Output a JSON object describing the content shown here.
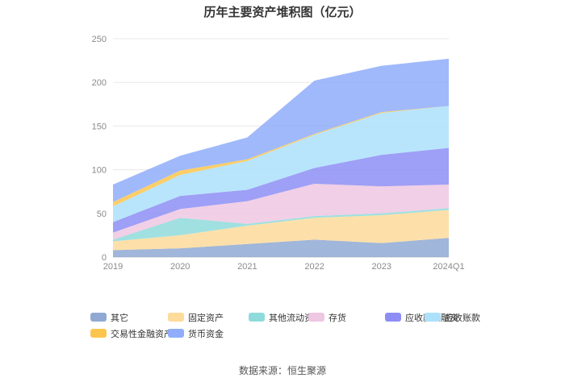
{
  "chart_data": {
    "type": "area",
    "stacked": true,
    "title": "历年主要资产堆积图（亿元）",
    "categories": [
      "2019",
      "2020",
      "2021",
      "2022",
      "2023",
      "2024Q1"
    ],
    "y_ticks": [
      "0",
      "50",
      "100",
      "150",
      "200",
      "250"
    ],
    "ylim": [
      0,
      250
    ],
    "grid": true,
    "legend_position": "bottom",
    "series": [
      {
        "name": "其它",
        "color": "#8fa9d3",
        "values": [
          8,
          10,
          15,
          20,
          16,
          22
        ]
      },
      {
        "name": "固定资产",
        "color": "#fddb9a",
        "values": [
          10,
          15,
          21,
          25,
          32,
          32
        ]
      },
      {
        "name": "其他流动资产",
        "color": "#8fdbdc",
        "values": [
          2,
          20,
          2,
          2,
          2,
          2
        ]
      },
      {
        "name": "存货",
        "color": "#eec7e2",
        "values": [
          8,
          10,
          26,
          37,
          31,
          27
        ]
      },
      {
        "name": "应收款项融资",
        "color": "#8d8ef5",
        "values": [
          12,
          15,
          13,
          18,
          36,
          42
        ]
      },
      {
        "name": "应收账款",
        "color": "#ace1fb",
        "values": [
          18,
          24,
          33,
          38,
          48,
          48
        ]
      },
      {
        "name": "交易性金融资产",
        "color": "#fcc64e",
        "values": [
          5,
          5,
          2,
          1,
          1,
          0
        ]
      },
      {
        "name": "货币资金",
        "color": "#8fadfa",
        "values": [
          20,
          17,
          25,
          61,
          53,
          54
        ]
      }
    ]
  },
  "source": "数据来源：恒生聚源"
}
